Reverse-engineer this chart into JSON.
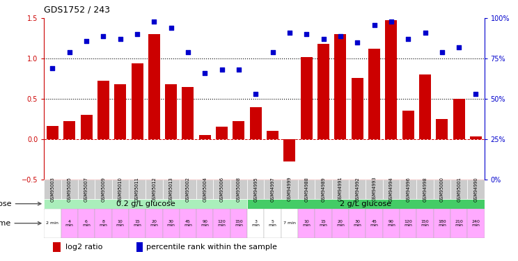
{
  "title": "GDS1752 / 243",
  "samples": [
    "GSM95003",
    "GSM95005",
    "GSM95007",
    "GSM95009",
    "GSM95010",
    "GSM95011",
    "GSM95012",
    "GSM95013",
    "GSM95002",
    "GSM95004",
    "GSM95006",
    "GSM95008",
    "GSM94995",
    "GSM94997",
    "GSM94999",
    "GSM94988",
    "GSM94989",
    "GSM94991",
    "GSM94992",
    "GSM94993",
    "GSM94994",
    "GSM94996",
    "GSM94998",
    "GSM95000",
    "GSM95001",
    "GSM94990"
  ],
  "log2_ratio": [
    0.16,
    0.22,
    0.3,
    0.72,
    0.68,
    0.94,
    1.3,
    0.68,
    0.65,
    0.05,
    0.15,
    0.22,
    0.4,
    0.1,
    -0.28,
    1.02,
    1.18,
    1.3,
    0.76,
    1.12,
    1.48,
    0.35,
    0.8,
    0.25,
    0.5,
    0.03
  ],
  "percentile_left": [
    0.88,
    1.08,
    1.22,
    1.28,
    1.24,
    1.3,
    1.46,
    1.38,
    1.08,
    0.82,
    0.86,
    0.86,
    0.56,
    1.08,
    1.32,
    1.3,
    1.24,
    1.28,
    1.2,
    1.42,
    1.46,
    1.24,
    1.32,
    1.08,
    1.14,
    0.56
  ],
  "bar_color": "#cc0000",
  "dot_color": "#0000cc",
  "ylim_left": [
    -0.5,
    1.5
  ],
  "yticks_left": [
    -0.5,
    0.0,
    0.5,
    1.0,
    1.5
  ],
  "hline_y": [
    0.0,
    0.5,
    1.0
  ],
  "dose_groups": [
    {
      "label": "0.2 g/L glucose",
      "start": 0,
      "end": 12,
      "color": "#aaeebb"
    },
    {
      "label": "2 g/L glucose",
      "start": 12,
      "end": 26,
      "color": "#44cc66"
    }
  ],
  "time_labels": [
    "2 min",
    "4\nmin",
    "6\nmin",
    "8\nmin",
    "10\nmin",
    "15\nmin",
    "20\nmin",
    "30\nmin",
    "45\nmin",
    "90\nmin",
    "120\nmin",
    "150\nmin",
    "3\nmin",
    "5\nmin",
    "7 min",
    "10\nmin",
    "15\nmin",
    "20\nmin",
    "30\nmin",
    "45\nmin",
    "90\nmin",
    "120\nmin",
    "150\nmin",
    "180\nmin",
    "210\nmin",
    "240\nmin"
  ],
  "time_colors": [
    "#ffffff",
    "#ffaaff",
    "#ffaaff",
    "#ffaaff",
    "#ffaaff",
    "#ffaaff",
    "#ffaaff",
    "#ffaaff",
    "#ffaaff",
    "#ffaaff",
    "#ffaaff",
    "#ffaaff",
    "#ffffff",
    "#ffffff",
    "#ffffff",
    "#ffaaff",
    "#ffaaff",
    "#ffaaff",
    "#ffaaff",
    "#ffaaff",
    "#ffaaff",
    "#ffaaff",
    "#ffaaff",
    "#ffaaff",
    "#ffaaff",
    "#ffaaff"
  ],
  "legend_bar_label": "log2 ratio",
  "legend_dot_label": "percentile rank within the sample",
  "bg_color": "#ffffff"
}
